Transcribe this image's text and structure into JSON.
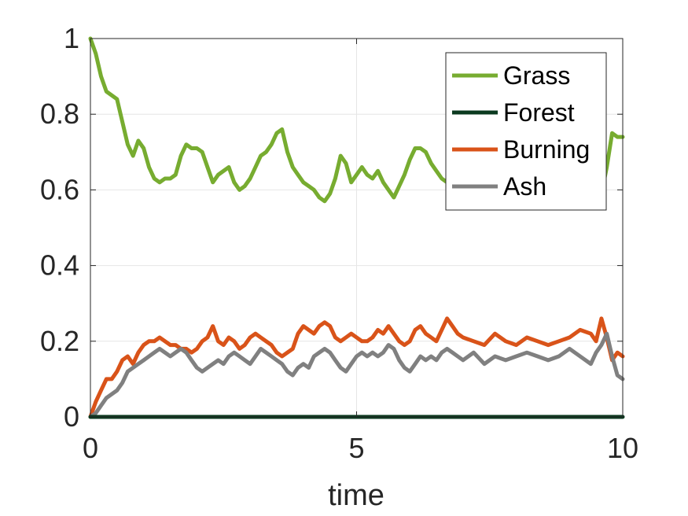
{
  "chart_data": {
    "type": "line",
    "title": "",
    "xlabel": "time",
    "ylabel": "",
    "xlim": [
      0,
      10
    ],
    "ylim": [
      0,
      1
    ],
    "xticks": [
      "0",
      "5",
      "10"
    ],
    "yticks": [
      "0",
      "0.2",
      "0.4",
      "0.6",
      "0.8",
      "1"
    ],
    "grid": true,
    "legend_position": "top-right",
    "series": [
      {
        "name": "Grass",
        "color": "#77AC30",
        "x": [
          0,
          0.1,
          0.2,
          0.3,
          0.4,
          0.5,
          0.6,
          0.7,
          0.8,
          0.9,
          1.0,
          1.1,
          1.2,
          1.3,
          1.4,
          1.5,
          1.6,
          1.7,
          1.8,
          1.9,
          2.0,
          2.1,
          2.2,
          2.3,
          2.4,
          2.5,
          2.6,
          2.7,
          2.8,
          2.9,
          3.0,
          3.1,
          3.2,
          3.3,
          3.4,
          3.5,
          3.6,
          3.7,
          3.8,
          3.9,
          4.0,
          4.1,
          4.2,
          4.3,
          4.4,
          4.5,
          4.6,
          4.7,
          4.8,
          4.9,
          5.0,
          5.1,
          5.2,
          5.3,
          5.4,
          5.5,
          5.6,
          5.7,
          5.8,
          5.9,
          6.0,
          6.1,
          6.2,
          6.3,
          6.4,
          6.5,
          6.6,
          6.7,
          6.8,
          6.9,
          7.0,
          7.2,
          7.4,
          7.6,
          7.8,
          8.0,
          8.2,
          8.4,
          8.6,
          8.8,
          9.0,
          9.2,
          9.4,
          9.6,
          9.7,
          9.8,
          9.9,
          10.0
        ],
        "y": [
          1.0,
          0.96,
          0.9,
          0.86,
          0.85,
          0.84,
          0.78,
          0.72,
          0.69,
          0.73,
          0.71,
          0.66,
          0.63,
          0.62,
          0.63,
          0.63,
          0.64,
          0.69,
          0.72,
          0.71,
          0.71,
          0.7,
          0.66,
          0.62,
          0.64,
          0.65,
          0.66,
          0.62,
          0.6,
          0.61,
          0.63,
          0.66,
          0.69,
          0.7,
          0.72,
          0.75,
          0.76,
          0.7,
          0.66,
          0.64,
          0.62,
          0.61,
          0.6,
          0.58,
          0.57,
          0.59,
          0.63,
          0.69,
          0.67,
          0.62,
          0.64,
          0.66,
          0.64,
          0.63,
          0.65,
          0.62,
          0.6,
          0.58,
          0.61,
          0.64,
          0.68,
          0.71,
          0.71,
          0.7,
          0.67,
          0.65,
          0.63,
          0.62,
          0.61,
          0.62,
          0.66,
          0.63,
          0.62,
          0.63,
          0.64,
          0.62,
          0.63,
          0.64,
          0.62,
          0.61,
          0.6,
          0.59,
          0.58,
          0.59,
          0.66,
          0.75,
          0.74,
          0.74
        ]
      },
      {
        "name": "Forest",
        "color": "#0B3A1F",
        "x": [
          0,
          10
        ],
        "y": [
          0,
          0
        ]
      },
      {
        "name": "Burning",
        "color": "#D95319",
        "x": [
          0,
          0.1,
          0.2,
          0.3,
          0.4,
          0.5,
          0.6,
          0.7,
          0.8,
          0.9,
          1.0,
          1.1,
          1.2,
          1.3,
          1.4,
          1.5,
          1.6,
          1.7,
          1.8,
          1.9,
          2.0,
          2.1,
          2.2,
          2.3,
          2.4,
          2.5,
          2.6,
          2.7,
          2.8,
          2.9,
          3.0,
          3.1,
          3.2,
          3.3,
          3.4,
          3.5,
          3.6,
          3.7,
          3.8,
          3.9,
          4.0,
          4.1,
          4.2,
          4.3,
          4.4,
          4.5,
          4.6,
          4.7,
          4.8,
          4.9,
          5.0,
          5.1,
          5.2,
          5.3,
          5.4,
          5.5,
          5.6,
          5.7,
          5.8,
          5.9,
          6.0,
          6.1,
          6.2,
          6.3,
          6.4,
          6.5,
          6.6,
          6.7,
          6.8,
          6.9,
          7.0,
          7.2,
          7.4,
          7.6,
          7.8,
          8.0,
          8.2,
          8.4,
          8.6,
          8.8,
          9.0,
          9.2,
          9.4,
          9.5,
          9.6,
          9.7,
          9.8,
          9.9,
          10.0
        ],
        "y": [
          0.0,
          0.04,
          0.07,
          0.1,
          0.1,
          0.12,
          0.15,
          0.16,
          0.14,
          0.17,
          0.19,
          0.2,
          0.2,
          0.21,
          0.2,
          0.19,
          0.19,
          0.18,
          0.18,
          0.17,
          0.18,
          0.2,
          0.21,
          0.24,
          0.2,
          0.19,
          0.21,
          0.2,
          0.18,
          0.19,
          0.21,
          0.22,
          0.21,
          0.2,
          0.19,
          0.17,
          0.16,
          0.17,
          0.18,
          0.22,
          0.24,
          0.23,
          0.22,
          0.24,
          0.25,
          0.24,
          0.21,
          0.2,
          0.21,
          0.22,
          0.21,
          0.2,
          0.2,
          0.21,
          0.23,
          0.22,
          0.24,
          0.22,
          0.2,
          0.19,
          0.2,
          0.23,
          0.24,
          0.22,
          0.21,
          0.2,
          0.23,
          0.26,
          0.24,
          0.22,
          0.21,
          0.2,
          0.19,
          0.22,
          0.2,
          0.19,
          0.21,
          0.2,
          0.19,
          0.2,
          0.21,
          0.23,
          0.22,
          0.2,
          0.26,
          0.21,
          0.15,
          0.17,
          0.16
        ]
      },
      {
        "name": "Ash",
        "color": "#808080",
        "x": [
          0,
          0.1,
          0.2,
          0.3,
          0.4,
          0.5,
          0.6,
          0.7,
          0.8,
          0.9,
          1.0,
          1.1,
          1.2,
          1.3,
          1.4,
          1.5,
          1.6,
          1.7,
          1.8,
          1.9,
          2.0,
          2.1,
          2.2,
          2.3,
          2.4,
          2.5,
          2.6,
          2.7,
          2.8,
          2.9,
          3.0,
          3.1,
          3.2,
          3.3,
          3.4,
          3.5,
          3.6,
          3.7,
          3.8,
          3.9,
          4.0,
          4.1,
          4.2,
          4.3,
          4.4,
          4.5,
          4.6,
          4.7,
          4.8,
          4.9,
          5.0,
          5.1,
          5.2,
          5.3,
          5.4,
          5.5,
          5.6,
          5.7,
          5.8,
          5.9,
          6.0,
          6.1,
          6.2,
          6.3,
          6.4,
          6.5,
          6.6,
          6.7,
          6.8,
          6.9,
          7.0,
          7.2,
          7.4,
          7.6,
          7.8,
          8.0,
          8.2,
          8.4,
          8.6,
          8.8,
          9.0,
          9.2,
          9.4,
          9.5,
          9.6,
          9.7,
          9.8,
          9.9,
          10.0
        ],
        "y": [
          0.0,
          0.01,
          0.03,
          0.05,
          0.06,
          0.07,
          0.09,
          0.12,
          0.13,
          0.14,
          0.15,
          0.16,
          0.17,
          0.18,
          0.17,
          0.16,
          0.17,
          0.18,
          0.17,
          0.15,
          0.13,
          0.12,
          0.13,
          0.14,
          0.15,
          0.14,
          0.16,
          0.17,
          0.16,
          0.15,
          0.14,
          0.16,
          0.18,
          0.17,
          0.16,
          0.15,
          0.14,
          0.12,
          0.11,
          0.13,
          0.14,
          0.13,
          0.16,
          0.17,
          0.18,
          0.17,
          0.15,
          0.13,
          0.12,
          0.14,
          0.16,
          0.17,
          0.16,
          0.17,
          0.16,
          0.17,
          0.19,
          0.18,
          0.15,
          0.13,
          0.12,
          0.14,
          0.16,
          0.15,
          0.16,
          0.15,
          0.17,
          0.18,
          0.17,
          0.16,
          0.15,
          0.17,
          0.14,
          0.16,
          0.15,
          0.16,
          0.17,
          0.16,
          0.15,
          0.16,
          0.18,
          0.16,
          0.14,
          0.17,
          0.19,
          0.22,
          0.16,
          0.11,
          0.1
        ]
      }
    ]
  }
}
